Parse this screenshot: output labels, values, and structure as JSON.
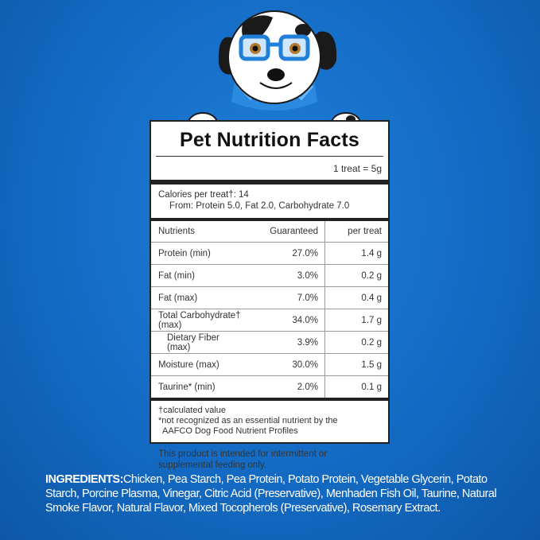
{
  "panel": {
    "title": "Pet Nutrition Facts",
    "serving": "1 treat = 5g",
    "calories_line": "Calories per treat†: 14",
    "calories_from": "From: Protein 5.0, Fat 2.0, Carbohydrate 7.0",
    "headers": {
      "nutrient": "Nutrients",
      "guaranteed": "Guaranteed",
      "per_treat": "per treat"
    },
    "rows": [
      {
        "name": "Protein (min)",
        "guaranteed": "27.0%",
        "per_treat": "1.4 g"
      },
      {
        "name": "Fat (min)",
        "guaranteed": "3.0%",
        "per_treat": "0.2 g"
      },
      {
        "name": "Fat (max)",
        "guaranteed": "7.0%",
        "per_treat": "0.4 g"
      },
      {
        "name": "Total Carbohydrate† (max)",
        "guaranteed": "34.0%",
        "per_treat": "1.7 g"
      },
      {
        "name": "Dietary Fiber (max)",
        "guaranteed": "3.9%",
        "per_treat": "0.2 g"
      },
      {
        "name": "Moisture (max)",
        "guaranteed": "30.0%",
        "per_treat": "1.5 g"
      },
      {
        "name": "Taurine* (min)",
        "guaranteed": "2.0%",
        "per_treat": "0.1 g"
      }
    ],
    "note_calculated": "†calculated value",
    "note_not_recognized": "*not recognized as an essential nutrient by the",
    "note_aafco": "AAFCO Dog Food Nutrient Profiles",
    "intended": "This product is intended for intermittent or supplemental feeding only."
  },
  "ingredients": {
    "label": "INGREDIENTS:",
    "text": "Chicken, Pea Starch, Pea Protein, Potato Protein, Vegetable Glycerin, Potato Starch, Porcine Plasma, Vinegar, Citric Acid (Preservative), Menhaden Fish Oil, Taurine, Natural Smoke Flavor, Natural Flavor, Mixed Tocopherols (Preservative), Rosemary Extract."
  },
  "mascot": {
    "icon": "dog-with-glasses-icon"
  },
  "colors": {
    "background": "#146bc4",
    "accent": "#1f7fd9"
  }
}
